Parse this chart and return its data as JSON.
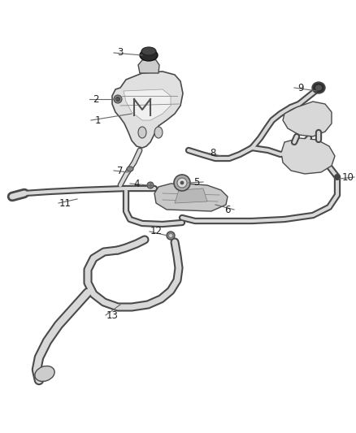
{
  "background_color": "#ffffff",
  "fig_width": 4.38,
  "fig_height": 5.33,
  "dpi": 100,
  "line_color": "#4a4a4a",
  "fill_color": "#d8d8d8",
  "callout_color": "#666666",
  "label_color": "#222222",
  "label_fontsize": 8.5,
  "tube_lw_outer": 7,
  "tube_lw_inner": 4
}
